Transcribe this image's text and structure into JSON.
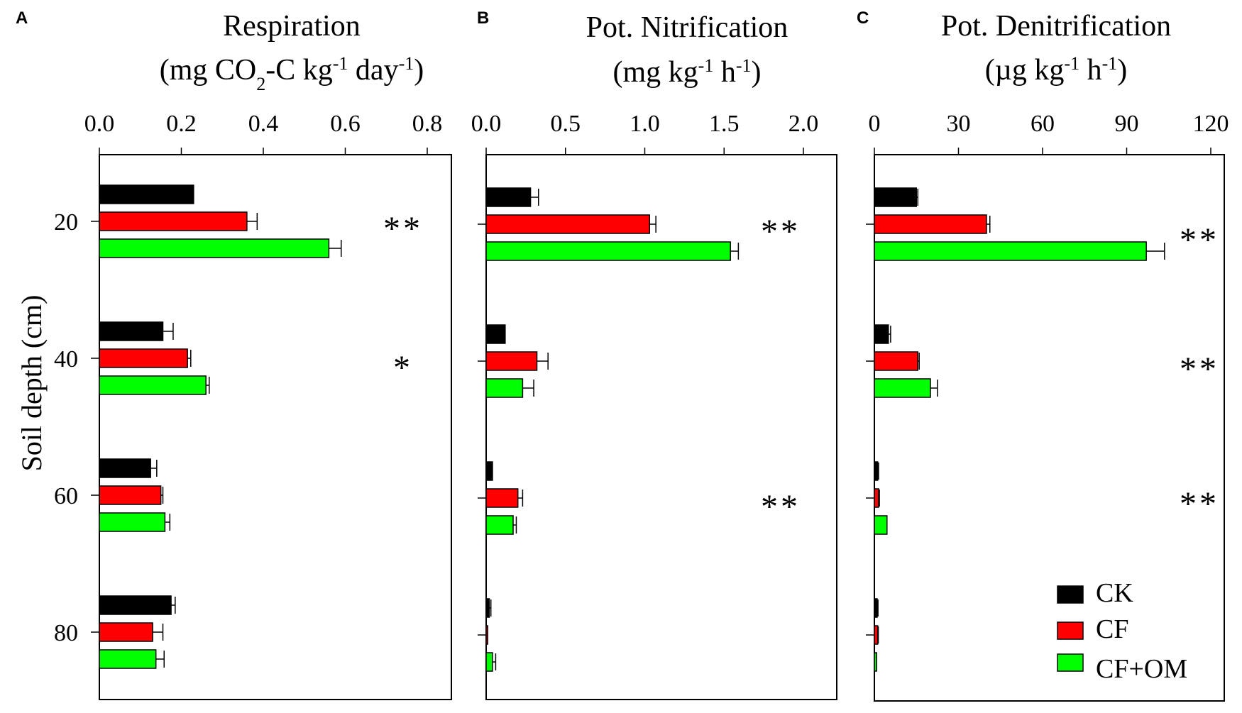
{
  "figure": {
    "ylabel": "Soil depth (cm)",
    "depth_ticks": [
      "20",
      "40",
      "60",
      "80"
    ],
    "legend": [
      "CK",
      "CF",
      "CF+OM"
    ],
    "colors": {
      "CK": "#000000",
      "CF": "#ff0000",
      "CF+OM": "#00ff00"
    }
  },
  "chart_data": [
    {
      "type": "bar",
      "orientation": "horizontal",
      "panel_letter": "A",
      "title": "Respiration",
      "unit_parts": [
        "(mg CO",
        "2",
        "-C kg",
        "-1",
        "  day",
        "-1",
        ")"
      ],
      "categories": [
        "20",
        "40",
        "60",
        "80"
      ],
      "xlim": [
        0,
        0.8
      ],
      "xticks": [
        "0.0",
        "0.2",
        "0.4",
        "0.6",
        "0.8"
      ],
      "series": [
        {
          "name": "CK",
          "values": [
            0.23,
            0.155,
            0.125,
            0.175
          ],
          "errors": [
            0.0,
            0.025,
            0.015,
            0.01
          ]
        },
        {
          "name": "CF",
          "values": [
            0.36,
            0.215,
            0.15,
            0.13
          ],
          "errors": [
            0.025,
            0.008,
            0.005,
            0.025
          ]
        },
        {
          "name": "CF+OM",
          "values": [
            0.56,
            0.26,
            0.16,
            0.138
          ],
          "errors": [
            0.03,
            0.008,
            0.012,
            0.02
          ]
        }
      ],
      "significance": [
        "**",
        "*",
        "",
        ""
      ]
    },
    {
      "type": "bar",
      "orientation": "horizontal",
      "panel_letter": "B",
      "title": "Pot. Nitrification",
      "unit_parts": [
        "(mg kg",
        "-1",
        " h",
        "-1",
        ")"
      ],
      "categories": [
        "20",
        "40",
        "60",
        "80"
      ],
      "xlim": [
        0,
        2.0
      ],
      "xticks": [
        "0.0",
        "0.5",
        "1.0",
        "1.5",
        "2.0"
      ],
      "series": [
        {
          "name": "CK",
          "values": [
            0.28,
            0.12,
            0.04,
            0.02
          ],
          "errors": [
            0.05,
            0.0,
            0.0,
            0.01
          ]
        },
        {
          "name": "CF",
          "values": [
            1.03,
            0.32,
            0.2,
            0.01
          ],
          "errors": [
            0.04,
            0.07,
            0.03,
            0.0
          ]
        },
        {
          "name": "CF+OM",
          "values": [
            1.54,
            0.23,
            0.17,
            0.04
          ],
          "errors": [
            0.05,
            0.07,
            0.02,
            0.02
          ]
        }
      ],
      "significance": [
        "**",
        "",
        "**",
        ""
      ]
    },
    {
      "type": "bar",
      "orientation": "horizontal",
      "panel_letter": "C",
      "title": "Pot. Denitrification",
      "unit_parts": [
        "(µg kg",
        "-1",
        " h",
        "-1",
        ")"
      ],
      "categories": [
        "20",
        "40",
        "60",
        "80"
      ],
      "xlim": [
        0,
        120
      ],
      "xticks": [
        "0",
        "30",
        "60",
        "90",
        "120"
      ],
      "series": [
        {
          "name": "CK",
          "values": [
            15,
            5,
            1.2,
            1.0
          ],
          "errors": [
            0.5,
            0.8,
            0.3,
            0.3
          ]
        },
        {
          "name": "CF",
          "values": [
            40,
            15.5,
            1.5,
            1.2
          ],
          "errors": [
            1.2,
            0.5,
            0.3,
            0.2
          ]
        },
        {
          "name": "CF+OM",
          "values": [
            97,
            20,
            4.5,
            0.8
          ],
          "errors": [
            6.5,
            2.5,
            0.0,
            0.0
          ]
        }
      ],
      "significance": [
        "**",
        "**",
        "**",
        ""
      ]
    }
  ]
}
